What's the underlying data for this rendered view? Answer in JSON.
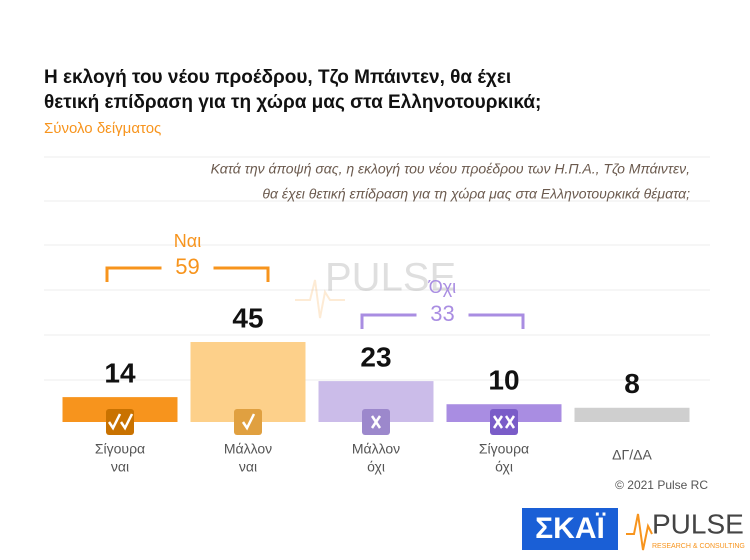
{
  "chart_data": {
    "type": "bar",
    "title": [
      "Η εκλογή του νέου προέδρου, Τζο Μπάιντεν, θα έχει",
      "θετική επίδραση για τη χώρα μας στα Ελληνοτουρκικά;"
    ],
    "subtitle": "Σύνολο δείγματος",
    "question": [
      "Κατά την άποψή σας, η εκλογή του νέου προέδρου των Η.Π.Α., Τζο Μπάιντεν,",
      "θα έχει θετική επίδραση για τη χώρα μας στα Ελληνοτουρκικά θέματα;"
    ],
    "categories": [
      [
        "Σίγουρα",
        "ναι"
      ],
      [
        "Μάλλον",
        "ναι"
      ],
      [
        "Μάλλον",
        "όχι"
      ],
      [
        "Σίγουρα",
        "όχι"
      ],
      [
        "ΔΓ/ΔΑ"
      ]
    ],
    "values": [
      14,
      45,
      23,
      10,
      8
    ],
    "colors": [
      "#f7941d",
      "#fdd08a",
      "#cbbce9",
      "#a98de2",
      "#cfcfcf"
    ],
    "ylim": [
      0,
      45
    ],
    "groups": [
      {
        "label": "Ναι",
        "value": 59,
        "color": "#f7941d"
      },
      {
        "label": "Όχι",
        "value": 33,
        "color": "#a98de2"
      }
    ],
    "copyright": "© 2021 Pulse RC",
    "logos": {
      "skai": "ΣΚΑΪ",
      "pulse": "PULSE",
      "pulse_sub": "RESEARCH & CONSULTING"
    }
  }
}
